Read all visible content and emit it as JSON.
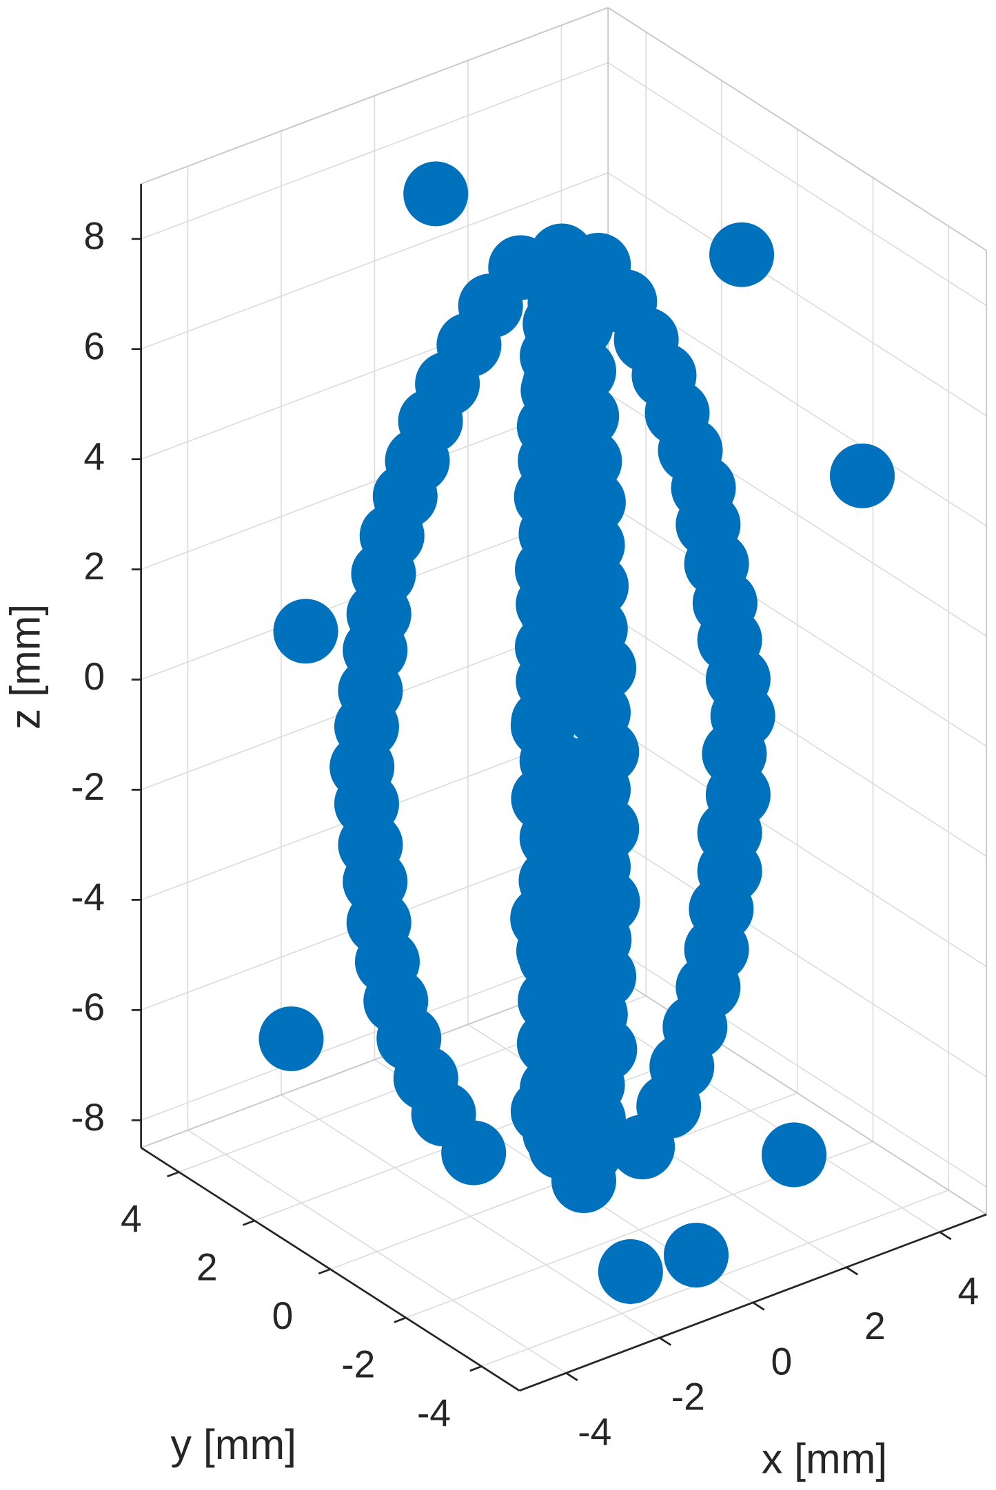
{
  "chart_data": {
    "type": "scatter3d",
    "xlabel": "x [mm]",
    "ylabel": "y [mm]",
    "zlabel": "z [mm]",
    "color": "#0072bd",
    "grid": true,
    "xlim": [
      -5,
      5
    ],
    "ylim": [
      -5,
      5
    ],
    "zlim": [
      -8.5,
      9
    ],
    "xticks": [
      -4,
      -2,
      0,
      2,
      4
    ],
    "yticks": [
      -4,
      -2,
      0,
      2,
      4
    ],
    "zticks": [
      -8,
      -6,
      -4,
      -2,
      0,
      2,
      4,
      6,
      8
    ],
    "x": [
      -1.2,
      -0.3,
      0.3,
      1.2,
      0.1,
      -1.6,
      -0.4,
      0.4,
      1.6,
      -0.2,
      -1.9,
      -0.5,
      0.5,
      1.8,
      0.2,
      -2.1,
      -0.6,
      0.6,
      2,
      -0.1,
      -2.3,
      -0.5,
      0.7,
      2.2,
      0.3,
      -2.4,
      -0.7,
      0.6,
      2.3,
      0,
      -2.5,
      -0.6,
      0.7,
      2.4,
      -0.2,
      -2.5,
      -0.7,
      0.8,
      2.5,
      0.2,
      -2.6,
      -0.6,
      0.7,
      2.5,
      -0.1,
      -2.6,
      -0.8,
      0.8,
      2.6,
      0.1,
      -2.7,
      -0.7,
      0.7,
      2.6,
      0,
      -2.6,
      -0.8,
      0.8,
      2.7,
      -0.2,
      -2.6,
      -0.7,
      0.7,
      2.6,
      0.2,
      -2.5,
      -0.8,
      0.8,
      2.5,
      0,
      -2.5,
      -0.6,
      0.7,
      2.4,
      -0.1,
      -2.4,
      -0.7,
      0.7,
      2.3,
      0.1,
      -2.3,
      -0.6,
      0.6,
      2.2,
      0,
      -2.1,
      -0.6,
      0.6,
      2.1,
      -0.1,
      -2,
      -0.5,
      0.5,
      1.9,
      0.1,
      -1.8,
      -0.5,
      0.5,
      1.7,
      0,
      -1.6,
      -0.4,
      0.4,
      1.5,
      -0.1,
      -1.3,
      -0.3,
      0.3,
      1.2,
      0.1,
      -1,
      -0.2,
      0.3,
      0.9,
      0,
      -0.6,
      -0.1,
      0.2,
      0.5,
      0,
      3.8,
      -3,
      2.5,
      -3.5,
      0,
      -1,
      0.5,
      3
    ],
    "y": [
      0.9,
      -0.9,
      0.6,
      -0.6,
      0.2,
      1.2,
      -1.2,
      0.8,
      -0.8,
      0.3,
      1.3,
      -1.4,
      1,
      -0.9,
      -0.3,
      1.5,
      -1.5,
      1.1,
      -1,
      0.1,
      1.6,
      -1.7,
      1.2,
      -1.1,
      -0.2,
      1.7,
      -1.7,
      1.3,
      -1.2,
      0.4,
      1.8,
      -1.8,
      1.2,
      -1.2,
      -0.1,
      1.9,
      -1.8,
      1.3,
      -1.3,
      0.3,
      1.9,
      -1.9,
      1.4,
      -1.3,
      -0.3,
      2,
      -1.9,
      1.3,
      -1.4,
      0.2,
      2,
      -2,
      1.4,
      -1.3,
      0,
      2,
      -1.9,
      1.4,
      -1.4,
      0.3,
      1.9,
      -2,
      1.3,
      -1.4,
      -0.2,
      1.9,
      -1.9,
      1.4,
      -1.3,
      0.1,
      1.8,
      -1.8,
      1.3,
      -1.3,
      0.2,
      1.8,
      -1.7,
      1.2,
      -1.2,
      -0.2,
      1.7,
      -1.6,
      1.2,
      -1.1,
      0.1,
      1.6,
      -1.5,
      1.1,
      -1.1,
      0.2,
      1.4,
      -1.4,
      1,
      -1,
      -0.1,
      1.3,
      -1.3,
      0.9,
      -0.9,
      0.2,
      1.1,
      -1.1,
      0.8,
      -0.8,
      0.1,
      0.9,
      -0.9,
      0.6,
      -0.7,
      -0.1,
      0.7,
      -0.7,
      0.5,
      -0.5,
      0.1,
      0.4,
      -0.4,
      0.3,
      -0.3,
      0,
      -3.2,
      3.5,
      -3,
      2.5,
      -3.5,
      -3,
      4,
      -1
    ],
    "z": [
      -8,
      -8,
      -8,
      -8,
      -8,
      -7.3,
      -7.3,
      -7.3,
      -7.3,
      -7.3,
      -6.6,
      -6.6,
      -6.6,
      -6.6,
      -6.6,
      -5.9,
      -5.9,
      -5.9,
      -5.9,
      -5.9,
      -5.2,
      -5.2,
      -5.2,
      -5.2,
      -5.2,
      -4.5,
      -4.5,
      -4.5,
      -4.5,
      -4.5,
      -3.8,
      -3.8,
      -3.8,
      -3.8,
      -3.8,
      -3.1,
      -3.1,
      -3.1,
      -3.1,
      -3.1,
      -2.4,
      -2.4,
      -2.4,
      -2.4,
      -2.4,
      -1.7,
      -1.7,
      -1.7,
      -1.7,
      -1.7,
      -1,
      -1,
      -1,
      -1,
      -1,
      -0.3,
      -0.3,
      -0.3,
      -0.3,
      -0.3,
      0.4,
      0.4,
      0.4,
      0.4,
      0.4,
      1.1,
      1.1,
      1.1,
      1.1,
      1.1,
      1.8,
      1.8,
      1.8,
      1.8,
      1.8,
      2.5,
      2.5,
      2.5,
      2.5,
      2.5,
      3.2,
      3.2,
      3.2,
      3.2,
      3.2,
      3.9,
      3.9,
      3.9,
      3.9,
      3.9,
      4.6,
      4.6,
      4.6,
      4.6,
      4.6,
      5.3,
      5.3,
      5.3,
      5.3,
      5.3,
      6,
      6,
      6,
      6,
      6,
      6.7,
      6.7,
      6.7,
      6.7,
      6.7,
      7.4,
      7.4,
      7.4,
      7.4,
      7.4,
      8.1,
      8.1,
      8.1,
      8.1,
      8.1,
      4.5,
      -6.5,
      -7.5,
      1.5,
      -8.3,
      -8.5,
      7.5,
      7.8
    ]
  }
}
